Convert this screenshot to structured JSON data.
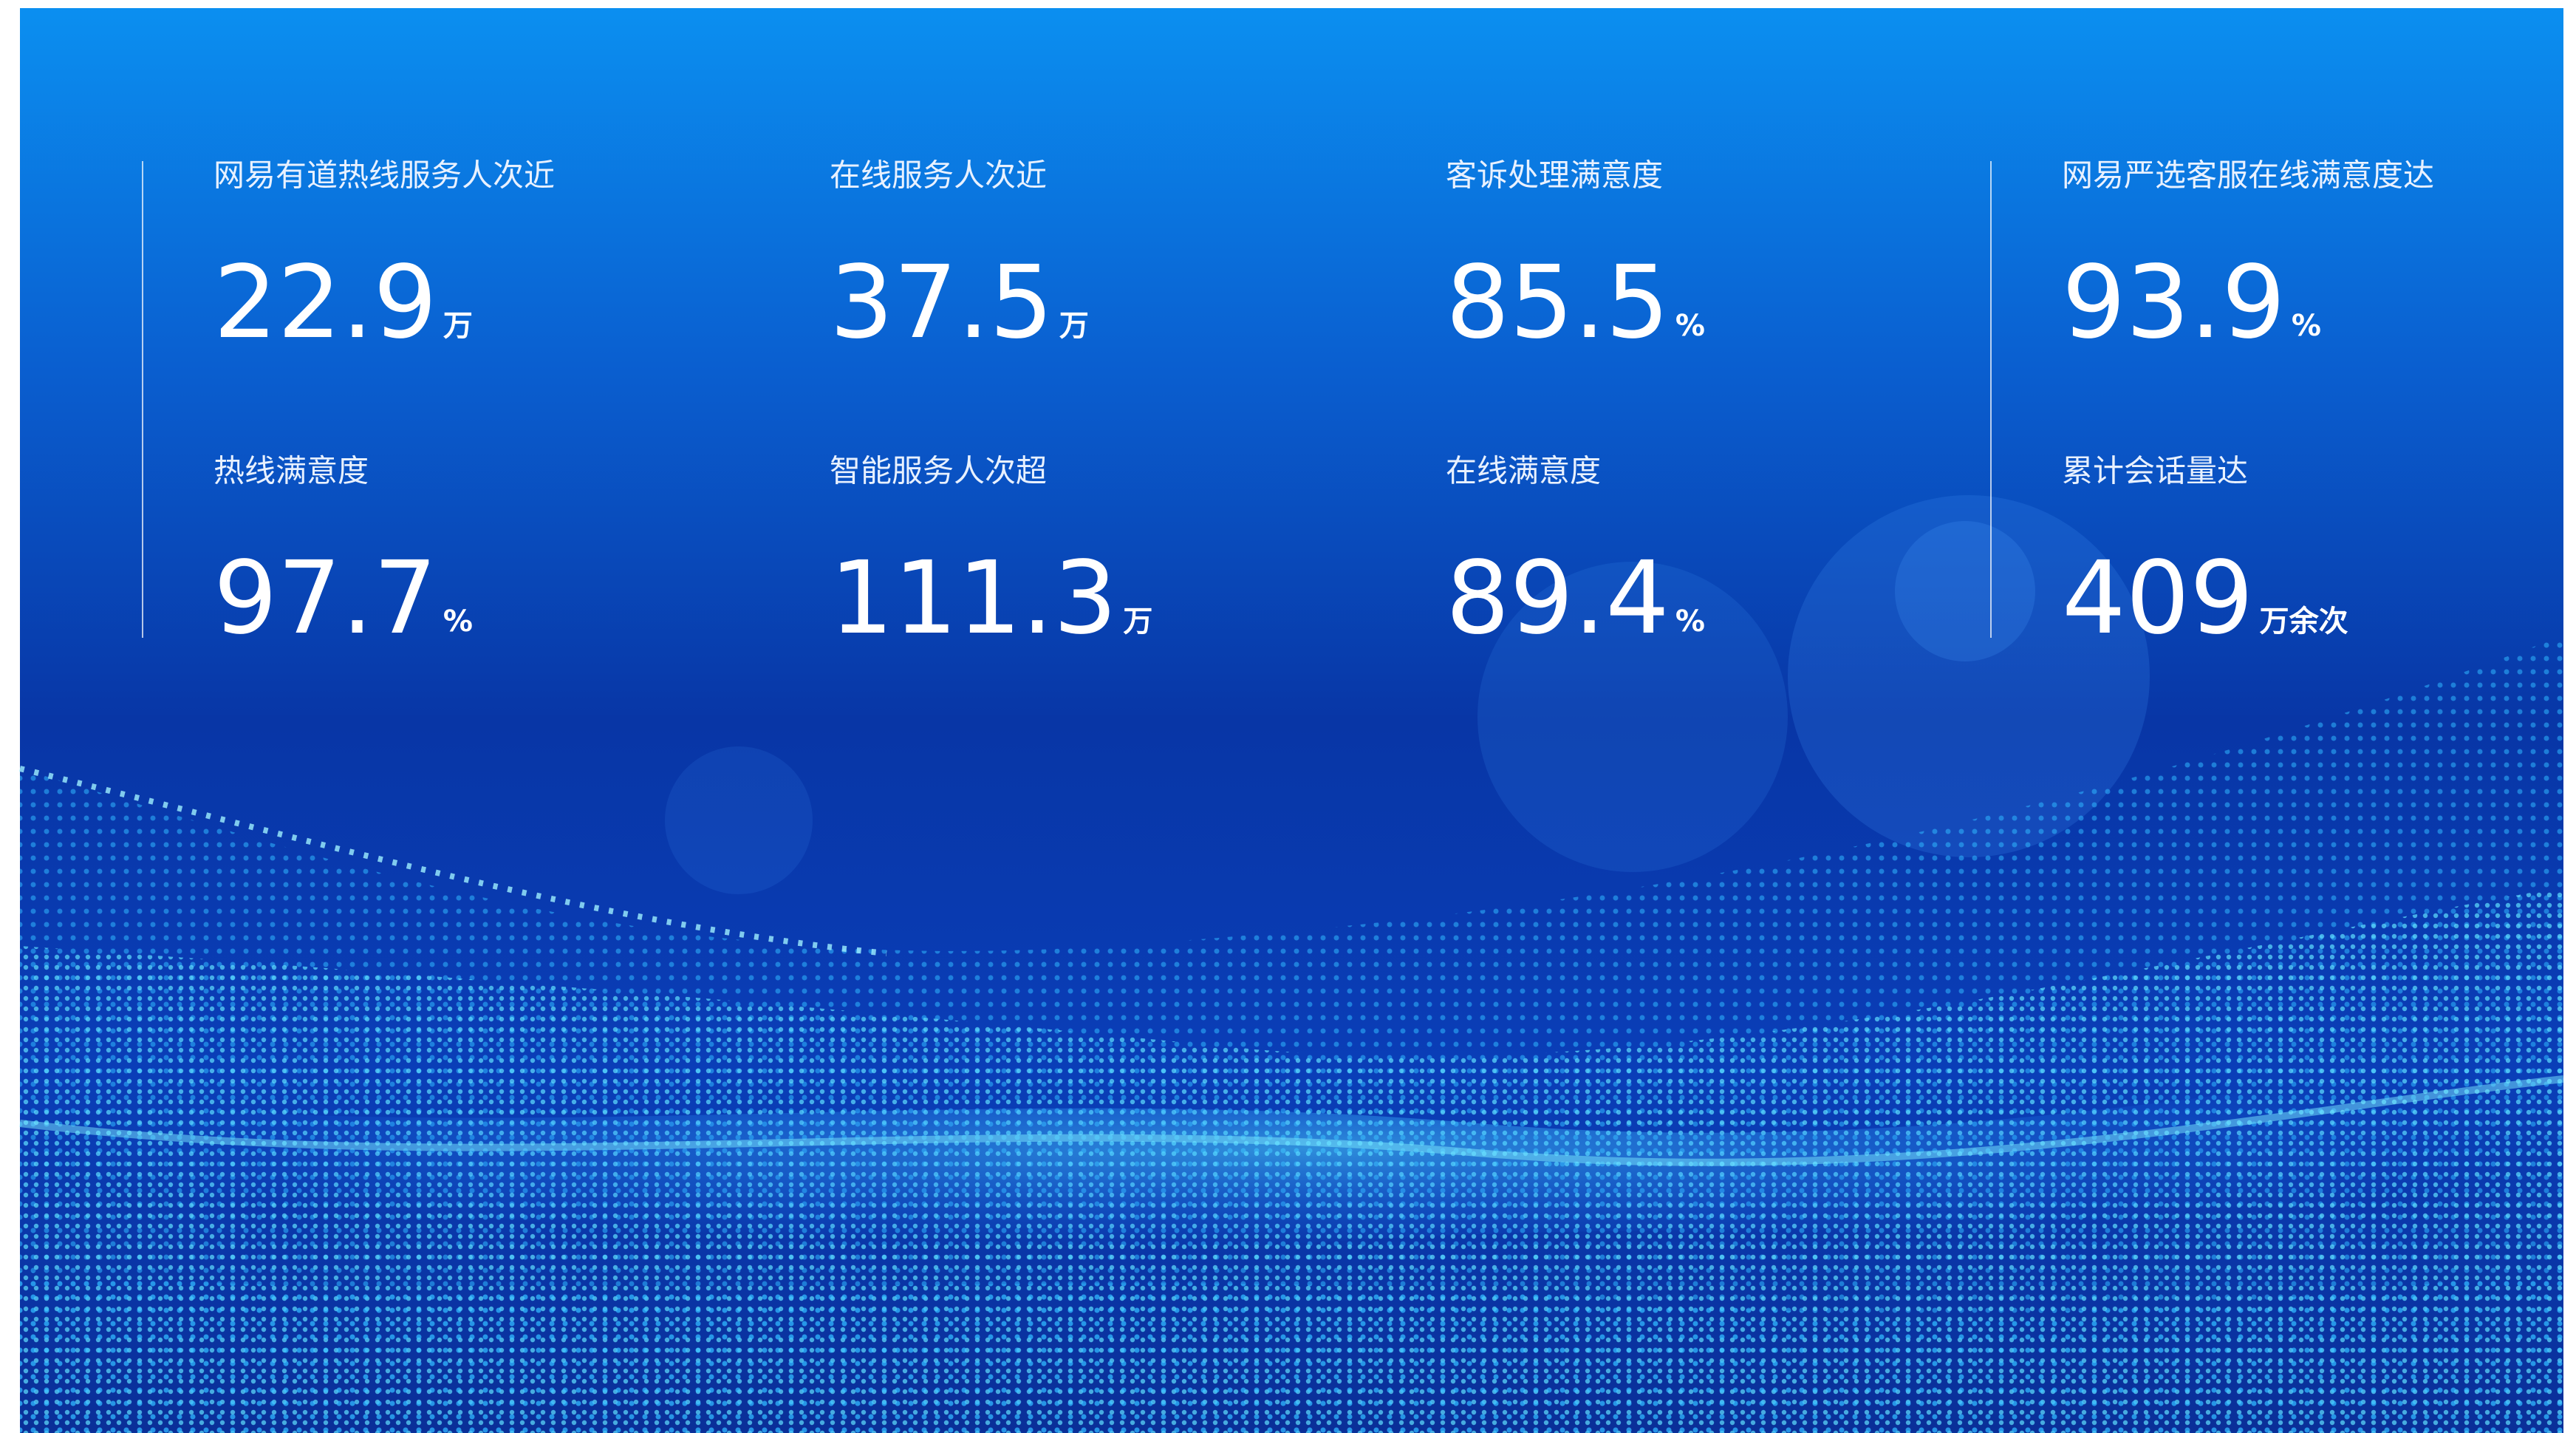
{
  "stats": [
    {
      "label": "网易有道热线服务人次近",
      "value": 22.9,
      "unit": "万"
    },
    {
      "label": "在线服务人次近",
      "value": 37.5,
      "unit": "万"
    },
    {
      "label": "客诉处理满意度",
      "value": 85.5,
      "unit": "%"
    },
    {
      "label": "网易严选客服在线满意度达",
      "value": 93.9,
      "unit": "%"
    },
    {
      "label": "热线满意度",
      "value": 97.7,
      "unit": "%"
    },
    {
      "label": "智能服务人次超",
      "value": 111.3,
      "unit": "万"
    },
    {
      "label": "在线满意度",
      "value": 89.4,
      "unit": "%"
    },
    {
      "label": "累计会话量达",
      "value": 409,
      "unit": "万余次"
    }
  ]
}
